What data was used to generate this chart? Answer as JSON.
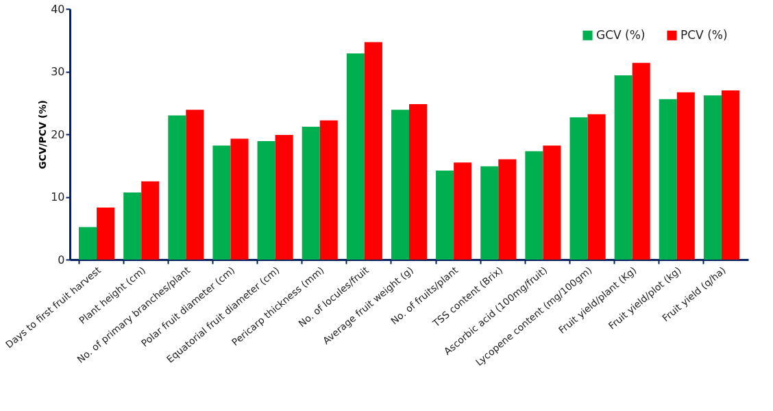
{
  "chart_data": {
    "type": "bar",
    "ylabel": "GCV/PCV (%)",
    "categories": [
      "Days to first fruit harvest",
      "Plant height (cm)",
      "No. of primary branches/plant",
      "Polar fruit diameter (cm)",
      "Equatorial fruit diameter (cm)",
      "Pericarp thickness (mm)",
      "No. of locules/fruit",
      "Average fruit weight (g)",
      "No. of fruits/plant",
      "TSS content (Brix)",
      "Ascorbic acid (100mg/fruit)",
      "Lycopene content (mg/100gm)",
      "Fruit yield/plant (Kg)",
      "Fruit yield/plot (kg)",
      "Fruit yield (q/ha)"
    ],
    "series": [
      {
        "name": "GCV (%)",
        "color": "#00b050",
        "values": [
          5.2,
          10.7,
          23.0,
          18.2,
          18.9,
          21.2,
          32.9,
          23.9,
          14.2,
          14.9,
          17.3,
          22.7,
          29.4,
          25.6,
          26.2
        ]
      },
      {
        "name": "PCV (%)",
        "color": "#ff0000",
        "values": [
          8.3,
          12.5,
          23.9,
          19.3,
          19.9,
          22.2,
          34.7,
          24.8,
          15.5,
          16.0,
          18.2,
          23.2,
          31.4,
          26.7,
          27.0
        ]
      }
    ],
    "ylim": [
      0,
      40
    ],
    "yticks": [
      0,
      10,
      20,
      30,
      40
    ],
    "grid": false,
    "legend": "top right"
  }
}
